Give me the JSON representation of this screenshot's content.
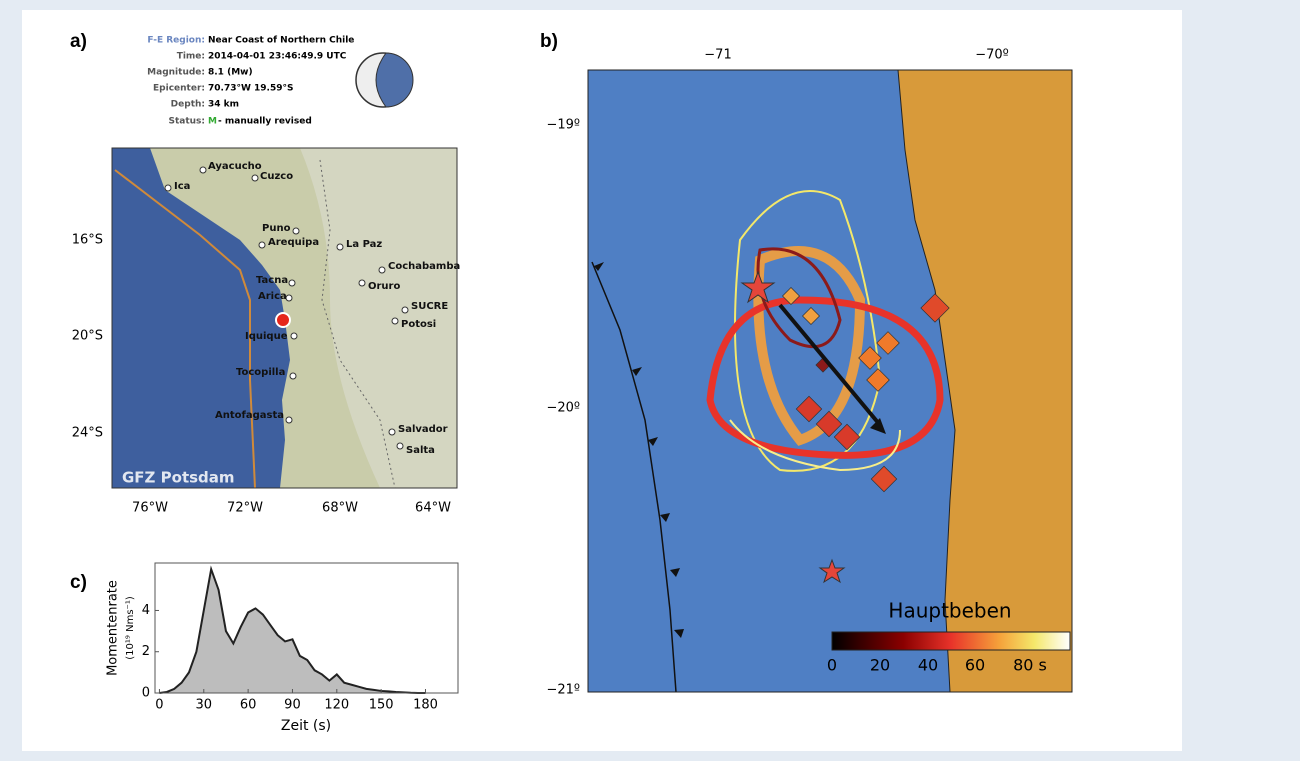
{
  "panel_a": {
    "label": "a)",
    "info": [
      [
        "F-E Region:",
        "Near Coast of Northern Chile"
      ],
      [
        "Time:",
        "2014-04-01 23:46:49.9 UTC"
      ],
      [
        "Magnitude:",
        "8.1 (Mw)"
      ],
      [
        "Epicenter:",
        "70.73°W  19.59°S"
      ],
      [
        "Depth:",
        "34 km"
      ],
      [
        "Status:",
        "M",
        "- manually revised"
      ]
    ],
    "cities": [
      "Ayacucho",
      "Cuzco",
      "Ica",
      "Puno",
      "Arequipa",
      "La Paz",
      "Cochabamba",
      "Tacna",
      "Oruro",
      "Arica",
      "SUCRE",
      "Potosi",
      "Iquique",
      "Tocopilla",
      "Antofagasta",
      "Salvador",
      "Salta"
    ],
    "lat_labels": [
      "16°S",
      "20°S",
      "24°S"
    ],
    "lon_labels": [
      "76°W",
      "72°W",
      "68°W",
      "64°W"
    ],
    "credit": "GFZ Potsdam"
  },
  "panel_b": {
    "label": "b)",
    "lon_labels": [
      "−71",
      "−70º"
    ],
    "lat_labels": [
      "−19º",
      "−20º",
      "−21º"
    ],
    "colorbar": {
      "title": "Hauptbeben",
      "ticks": [
        "0",
        "20",
        "40",
        "60",
        "80 s"
      ]
    }
  },
  "panel_c": {
    "label": "c)"
  },
  "chart_data": {
    "type": "area",
    "ylabel": "Momentenrate",
    "ylabel_unit": "(10¹⁹ Nms⁻¹)",
    "xlabel": "Zeit (s)",
    "x": [
      0,
      5,
      10,
      15,
      20,
      25,
      30,
      35,
      40,
      45,
      50,
      55,
      60,
      65,
      70,
      75,
      80,
      85,
      90,
      95,
      100,
      105,
      110,
      115,
      120,
      125,
      130,
      135,
      140,
      145,
      150,
      155,
      160,
      165,
      170,
      175,
      180
    ],
    "values": [
      0,
      0.05,
      0.2,
      0.5,
      1.0,
      2.0,
      4.0,
      6.0,
      5.0,
      3.0,
      2.4,
      3.2,
      3.9,
      4.1,
      3.8,
      3.3,
      2.8,
      2.5,
      2.6,
      1.8,
      1.6,
      1.1,
      0.9,
      0.6,
      0.9,
      0.5,
      0.4,
      0.3,
      0.2,
      0.15,
      0.1,
      0.08,
      0.05,
      0.03,
      0.01,
      0,
      0
    ],
    "color": "#bdbdbd",
    "xlim": [
      -3,
      202
    ],
    "ylim": [
      0,
      6.3
    ],
    "xticks": [
      0,
      30,
      60,
      90,
      120,
      150,
      180
    ],
    "yticks": [
      0,
      2,
      4
    ]
  }
}
